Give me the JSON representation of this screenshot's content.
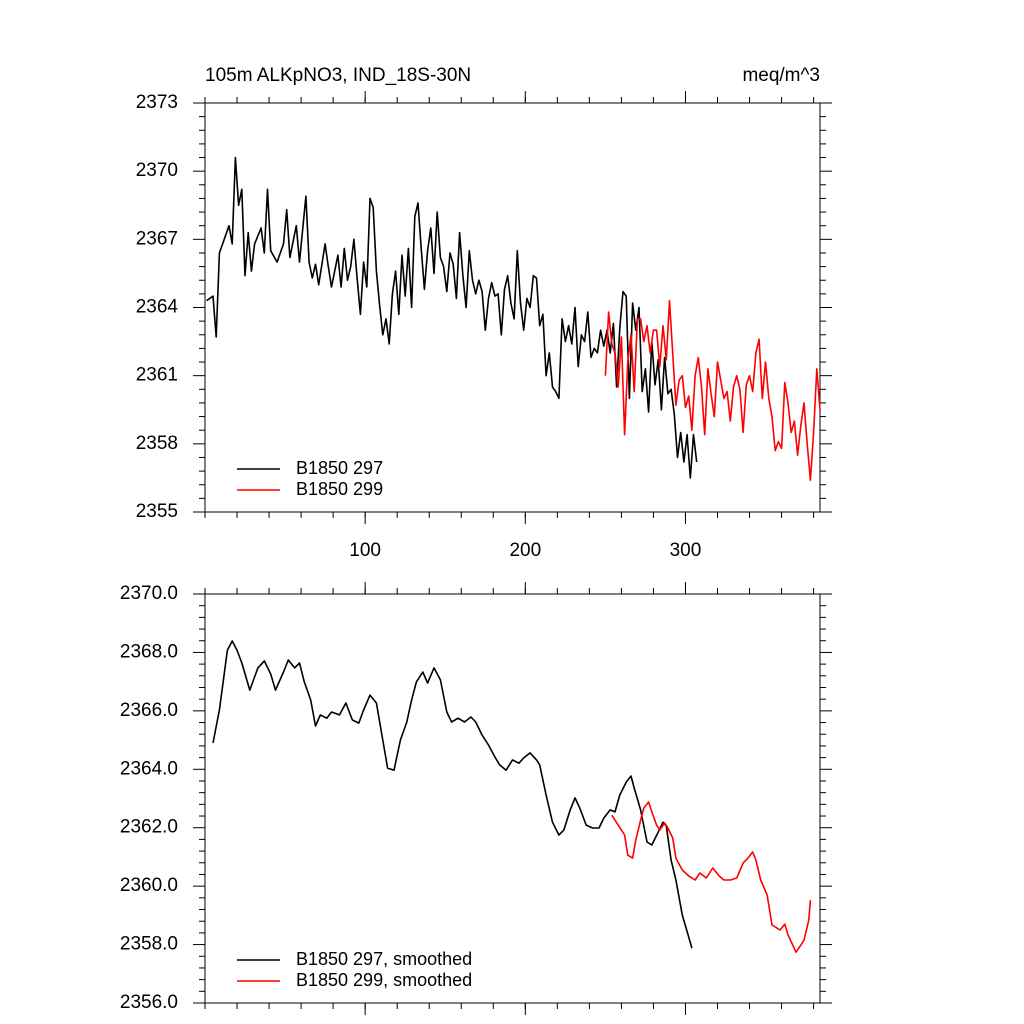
{
  "chart_data": [
    {
      "type": "line",
      "title": "105m ALKpNO3, IND_18S-30N",
      "units": "meq/m^3",
      "xlim": [
        0,
        384
      ],
      "xticks": [
        100,
        200,
        300
      ],
      "show_xtick_labels": true,
      "ylim": [
        2355,
        2373
      ],
      "yticks": [
        2355,
        2358,
        2361,
        2364,
        2367,
        2370,
        2373
      ],
      "legend": "lower left",
      "series": [
        {
          "name": "B1850 297",
          "color": "#000000",
          "x": [
            1,
            5,
            7,
            9,
            13,
            15,
            17,
            19,
            21,
            23,
            25,
            27,
            29,
            31,
            35,
            37,
            39,
            41,
            45,
            49,
            51,
            53,
            57,
            59,
            63,
            65,
            67,
            69,
            71,
            75,
            77,
            79,
            83,
            85,
            87,
            89,
            91,
            93,
            95,
            97,
            99,
            101,
            103,
            105,
            107,
            109,
            111,
            113,
            115,
            117,
            119,
            121,
            123,
            125,
            127,
            129,
            131,
            133,
            135,
            137,
            139,
            141,
            143,
            145,
            147,
            149,
            151,
            153,
            155,
            157,
            159,
            161,
            163,
            165,
            167,
            169,
            171,
            173,
            175,
            177,
            179,
            181,
            183,
            185,
            187,
            189,
            191,
            193,
            195,
            197,
            199,
            201,
            203,
            205,
            207,
            209,
            211,
            213,
            215,
            217,
            219,
            221,
            223,
            225,
            227,
            229,
            231,
            233,
            235,
            237,
            239,
            241,
            243,
            245,
            247,
            249,
            251,
            253,
            255,
            257,
            259,
            261,
            263,
            265,
            267,
            269,
            271,
            273,
            275,
            277,
            279,
            281,
            283,
            285,
            287,
            289,
            291,
            293,
            295,
            297,
            299,
            301,
            303,
            305,
            307
          ],
          "values": [
            2364.3,
            2364.5,
            2362.7,
            2366.4,
            2367.2,
            2367.6,
            2366.8,
            2370.6,
            2368.5,
            2369.2,
            2365.4,
            2367.3,
            2365.6,
            2366.8,
            2367.5,
            2366.4,
            2369.2,
            2366.5,
            2366.0,
            2366.8,
            2368.3,
            2366.2,
            2367.6,
            2366.0,
            2368.9,
            2366.0,
            2365.3,
            2365.9,
            2365.0,
            2366.8,
            2365.8,
            2364.9,
            2366.3,
            2364.9,
            2366.6,
            2365.2,
            2365.8,
            2367.0,
            2365.3,
            2363.7,
            2366.0,
            2364.9,
            2368.8,
            2368.4,
            2365.6,
            2364.1,
            2362.8,
            2363.5,
            2362.4,
            2364.6,
            2365.6,
            2363.7,
            2366.3,
            2364.5,
            2366.6,
            2364.0,
            2368.0,
            2368.6,
            2366.6,
            2364.8,
            2366.5,
            2367.5,
            2365.5,
            2368.2,
            2366.2,
            2365.8,
            2364.7,
            2366.4,
            2365.9,
            2364.4,
            2367.3,
            2365.4,
            2364.0,
            2366.5,
            2365.2,
            2364.6,
            2365.2,
            2364.7,
            2363.0,
            2364.4,
            2365.1,
            2364.5,
            2364.6,
            2362.8,
            2364.8,
            2365.4,
            2364.2,
            2363.5,
            2366.5,
            2364.2,
            2363.0,
            2364.4,
            2364.0,
            2365.4,
            2365.3,
            2363.2,
            2363.7,
            2361.0,
            2362.0,
            2360.5,
            2360.3,
            2360.0,
            2363.5,
            2362.5,
            2363.2,
            2362.4,
            2364.0,
            2361.4,
            2362.8,
            2362.5,
            2363.8,
            2361.8,
            2362.2,
            2362.0,
            2363.0,
            2362.3,
            2363.0,
            2362.0,
            2363.3,
            2360.5,
            2363.1,
            2364.7,
            2364.5,
            2360.0,
            2364.2,
            2363.0,
            2364.0,
            2360.3,
            2361.3,
            2359.4,
            2362.5,
            2360.6,
            2361.7,
            2359.5,
            2361.8,
            2360.2,
            2360.4,
            2359.3,
            2357.4,
            2358.5,
            2357.2,
            2358.4,
            2356.5,
            2358.4,
            2357.2
          ]
        },
        {
          "name": "B1850 299",
          "color": "#ff0000",
          "x": [
            250,
            252,
            254,
            256,
            258,
            260,
            262,
            264,
            266,
            268,
            270,
            272,
            274,
            276,
            278,
            280,
            282,
            284,
            286,
            288,
            290,
            292,
            294,
            296,
            298,
            300,
            302,
            304,
            306,
            308,
            310,
            312,
            314,
            316,
            318,
            320,
            322,
            324,
            326,
            328,
            330,
            332,
            334,
            336,
            338,
            340,
            342,
            344,
            346,
            348,
            350,
            352,
            354,
            356,
            358,
            360,
            362,
            364,
            366,
            368,
            370,
            372,
            374,
            376,
            378,
            380,
            382,
            384
          ],
          "values": [
            2361.0,
            2363.8,
            2362.4,
            2362.0,
            2360.5,
            2362.7,
            2358.4,
            2361.6,
            2362.8,
            2360.3,
            2363.5,
            2363.5,
            2362.5,
            2363.2,
            2362.0,
            2363.0,
            2363.0,
            2361.4,
            2363.2,
            2361.7,
            2364.3,
            2362.0,
            2359.7,
            2360.8,
            2361.0,
            2359.6,
            2360.1,
            2358.6,
            2361.0,
            2361.8,
            2360.5,
            2358.4,
            2361.3,
            2360.2,
            2359.2,
            2361.6,
            2360.8,
            2360.0,
            2360.3,
            2359.0,
            2360.5,
            2361.0,
            2360.4,
            2358.5,
            2360.6,
            2361.0,
            2360.3,
            2362.0,
            2362.6,
            2360.0,
            2361.6,
            2360.0,
            2359.2,
            2357.7,
            2358.1,
            2357.8,
            2360.7,
            2359.8,
            2358.5,
            2359.0,
            2357.5,
            2358.8,
            2359.8,
            2358.0,
            2356.4,
            2358.5,
            2361.3,
            2359.5
          ]
        }
      ]
    },
    {
      "type": "line",
      "xlim": [
        0,
        384
      ],
      "xticks": [
        100,
        200,
        300
      ],
      "show_xtick_labels": false,
      "ylim": [
        2356,
        2370
      ],
      "yticks": [
        {
          "value": 2356,
          "label": "2356.0"
        },
        {
          "value": 2358,
          "label": "2358.0"
        },
        {
          "value": 2360,
          "label": "2360.0"
        },
        {
          "value": 2362,
          "label": "2362.0"
        },
        {
          "value": 2364,
          "label": "2364.0"
        },
        {
          "value": 2366,
          "label": "2366.0"
        },
        {
          "value": 2368,
          "label": "2368.0"
        },
        {
          "value": 2370,
          "label": "2370.0"
        }
      ],
      "legend": "lower left",
      "series": [
        {
          "name": "B1850 297, smoothed",
          "color": "#000000",
          "x": [
            5,
            9,
            14,
            17,
            20,
            23,
            28,
            33,
            37,
            41,
            44,
            49,
            52,
            56,
            59,
            62,
            66,
            69,
            72,
            76,
            79,
            84,
            88,
            92,
            96,
            99,
            103,
            107,
            111,
            114,
            118,
            122,
            126,
            129,
            132,
            136,
            139,
            143,
            147,
            151,
            154,
            158,
            162,
            166,
            169,
            173,
            177,
            181,
            184,
            188,
            192,
            196,
            199,
            203,
            207,
            209,
            213,
            217,
            221,
            224,
            228,
            231,
            234,
            238,
            242,
            246,
            249,
            253,
            256,
            259,
            263,
            266,
            268,
            272,
            276,
            279,
            283,
            286,
            288,
            291,
            294,
            298,
            302,
            304
          ],
          "values": [
            2364.9,
            2366.03,
            2368.08,
            2368.39,
            2368.08,
            2367.64,
            2366.71,
            2367.47,
            2367.71,
            2367.26,
            2366.71,
            2367.33,
            2367.74,
            2367.47,
            2367.64,
            2366.99,
            2366.37,
            2365.48,
            2365.86,
            2365.75,
            2365.96,
            2365.86,
            2366.27,
            2365.69,
            2365.58,
            2366.03,
            2366.54,
            2366.27,
            2365.0,
            2364.04,
            2363.97,
            2365.0,
            2365.62,
            2366.37,
            2366.99,
            2367.33,
            2366.95,
            2367.47,
            2367.06,
            2365.96,
            2365.62,
            2365.75,
            2365.62,
            2365.79,
            2365.62,
            2365.17,
            2364.83,
            2364.42,
            2364.15,
            2363.97,
            2364.32,
            2364.21,
            2364.39,
            2364.56,
            2364.32,
            2364.15,
            2363.12,
            2362.19,
            2361.75,
            2361.92,
            2362.61,
            2363.02,
            2362.67,
            2362.09,
            2361.99,
            2361.99,
            2362.33,
            2362.61,
            2362.54,
            2363.12,
            2363.56,
            2363.77,
            2363.36,
            2362.61,
            2361.51,
            2361.41,
            2361.85,
            2362.19,
            2362.06,
            2360.89,
            2360.21,
            2359.01,
            2358.26,
            2357.88
          ]
        },
        {
          "name": "B1850 299, smoothed",
          "color": "#ff0000",
          "x": [
            254,
            258,
            262,
            264,
            267,
            269,
            272,
            274,
            277,
            279,
            282,
            284,
            287,
            289,
            292,
            294,
            298,
            302,
            306,
            309,
            313,
            317,
            321,
            324,
            328,
            332,
            336,
            339,
            342,
            344,
            347,
            351,
            354,
            357,
            359,
            362,
            364,
            367,
            369,
            372,
            374,
            377,
            378
          ],
          "values": [
            2362.43,
            2362.09,
            2361.75,
            2361.06,
            2360.96,
            2361.58,
            2362.26,
            2362.67,
            2362.88,
            2362.54,
            2362.09,
            2361.92,
            2362.16,
            2361.99,
            2361.65,
            2360.96,
            2360.55,
            2360.35,
            2360.21,
            2360.45,
            2360.28,
            2360.62,
            2360.35,
            2360.21,
            2360.21,
            2360.28,
            2360.79,
            2360.96,
            2361.17,
            2360.89,
            2360.21,
            2359.7,
            2358.67,
            2358.57,
            2358.5,
            2358.7,
            2358.33,
            2357.98,
            2357.74,
            2357.98,
            2358.15,
            2358.84,
            2359.52
          ]
        }
      ]
    }
  ]
}
